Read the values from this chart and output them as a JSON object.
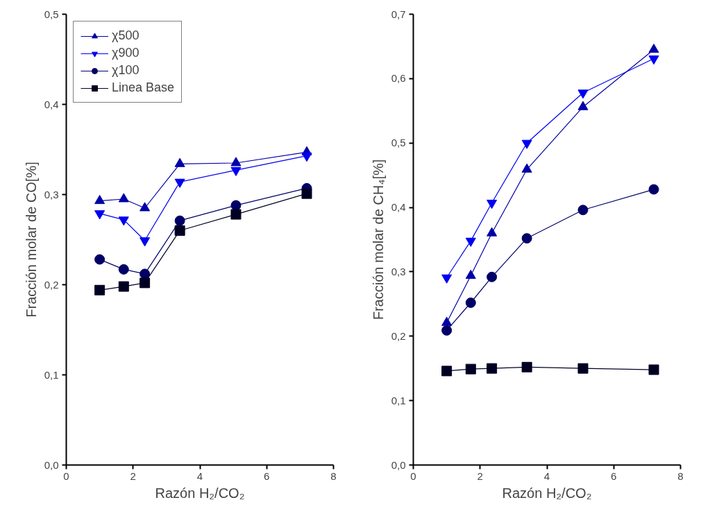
{
  "chart_data": [
    {
      "type": "line",
      "xlabel": "Razón H₂/CO₂",
      "ylabel": "Fracción molar de CO[%]",
      "x": [
        1.0,
        1.72,
        2.35,
        3.4,
        5.08,
        7.2
      ],
      "series": [
        {
          "name": "χ500",
          "color": "#0000a8",
          "marker": "triangle",
          "values": [
            0.293,
            0.295,
            0.285,
            0.334,
            0.335,
            0.347
          ]
        },
        {
          "name": "χ900",
          "color": "#0000f0",
          "marker": "triangle_down",
          "values": [
            0.279,
            0.272,
            0.249,
            0.314,
            0.327,
            0.343
          ]
        },
        {
          "name": "χ100",
          "color": "#000066",
          "marker": "circle",
          "values": [
            0.228,
            0.217,
            0.212,
            0.271,
            0.288,
            0.307
          ]
        },
        {
          "name": "Linea Base",
          "color": "#000022",
          "marker": "square",
          "values": [
            0.194,
            0.198,
            0.202,
            0.26,
            0.278,
            0.301
          ]
        }
      ],
      "xlim": [
        0,
        8
      ],
      "xticks": [
        0,
        2,
        4,
        6,
        8
      ],
      "ylim": [
        0,
        0.5
      ],
      "yticks": [
        {
          "value": 0,
          "label": "0,0"
        },
        {
          "value": 0.1,
          "label": "0,1"
        },
        {
          "value": 0.2,
          "label": "0,2"
        },
        {
          "value": 0.3,
          "label": "0,3"
        },
        {
          "value": 0.4,
          "label": "0,4"
        },
        {
          "value": 0.5,
          "label": "0,5"
        }
      ],
      "grid": false,
      "legend": "top left",
      "line_style": "solid"
    },
    {
      "type": "line",
      "xlabel": "Razón H₂/CO₂",
      "ylabel": "Fracción molar de CH₄[%]",
      "x": [
        1.0,
        1.72,
        2.35,
        3.4,
        5.08,
        7.2
      ],
      "series": [
        {
          "color": "#0000a8",
          "marker": "triangle",
          "values": [
            0.221,
            0.294,
            0.36,
            0.459,
            0.556,
            0.645
          ]
        },
        {
          "color": "#0000f0",
          "marker": "triangle_down",
          "values": [
            0.291,
            0.348,
            0.407,
            0.5,
            0.578,
            0.631
          ]
        },
        {
          "color": "#000066",
          "marker": "circle",
          "values": [
            0.209,
            0.252,
            0.292,
            0.352,
            0.396,
            0.428
          ]
        },
        {
          "color": "#000022",
          "marker": "square",
          "values": [
            0.146,
            0.149,
            0.15,
            0.152,
            0.15,
            0.148
          ]
        }
      ],
      "xlim": [
        0,
        8
      ],
      "xticks": [
        0,
        2,
        4,
        6,
        8
      ],
      "ylim": [
        0,
        0.7
      ],
      "yticks": [
        {
          "value": 0,
          "label": "0,0"
        },
        {
          "value": 0.1,
          "label": "0,1"
        },
        {
          "value": 0.2,
          "label": "0,2"
        },
        {
          "value": 0.3,
          "label": "0,3"
        },
        {
          "value": 0.4,
          "label": "0,4"
        },
        {
          "value": 0.5,
          "label": "0,5"
        },
        {
          "value": 0.6,
          "label": "0,6"
        },
        {
          "value": 0.7,
          "label": "0,7"
        }
      ],
      "grid": false,
      "legend": false,
      "line_style": "solid"
    }
  ]
}
